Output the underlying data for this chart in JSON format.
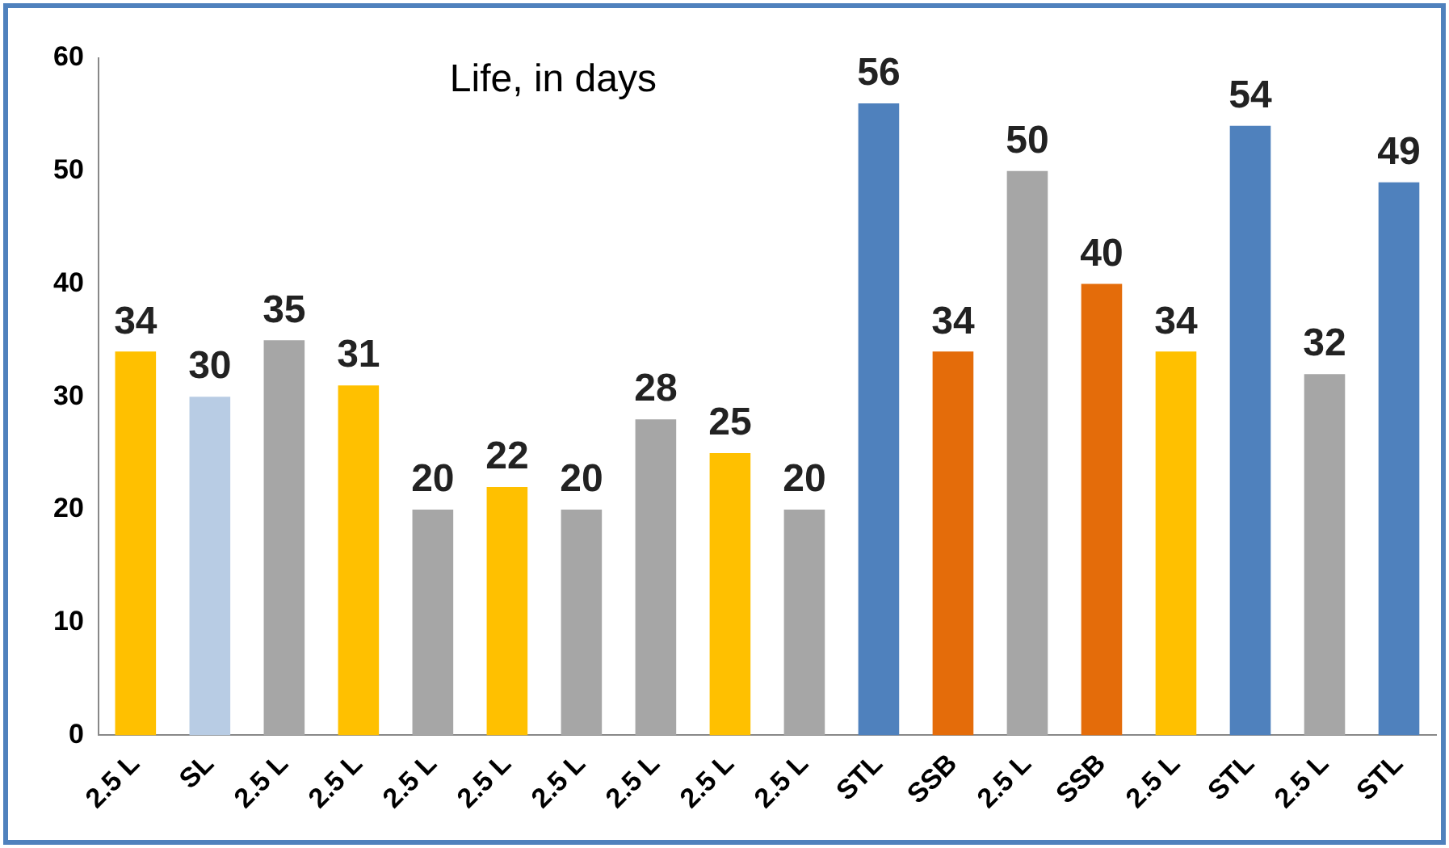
{
  "chart_data": {
    "type": "bar",
    "title": "Life, in days",
    "categories": [
      "2.5 L",
      "SL",
      "2.5 L",
      "2.5 L",
      "2.5 L",
      "2.5 L",
      "2.5 L",
      "2.5 L",
      "2.5 L",
      "2.5 L",
      "STL",
      "SSB",
      "2.5 L",
      "SSB",
      "2.5 L",
      "STL",
      "2.5 L",
      "STL"
    ],
    "values": [
      34,
      30,
      35,
      31,
      20,
      22,
      20,
      28,
      25,
      20,
      56,
      34,
      50,
      40,
      34,
      54,
      32,
      49
    ],
    "colors": [
      "#ffc000",
      "#b8cce4",
      "#a6a6a6",
      "#ffc000",
      "#a6a6a6",
      "#ffc000",
      "#a6a6a6",
      "#a6a6a6",
      "#ffc000",
      "#a6a6a6",
      "#4f81bd",
      "#e46c0a",
      "#a6a6a6",
      "#e46c0a",
      "#ffc000",
      "#4f81bd",
      "#a6a6a6",
      "#4f81bd"
    ],
    "ylim": [
      0,
      60
    ],
    "yticks": [
      0,
      10,
      20,
      30,
      40,
      50,
      60
    ],
    "grid": false,
    "legend": false,
    "data_labels": true
  }
}
